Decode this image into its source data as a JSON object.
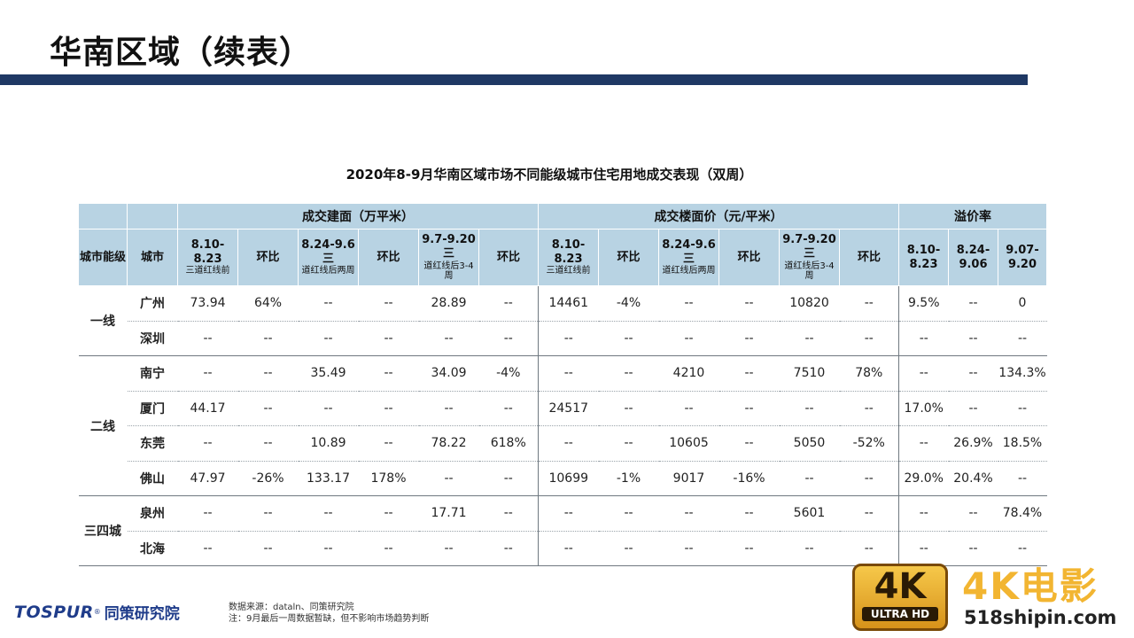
{
  "page": {
    "title": "华南区域（续表）",
    "table_title": "2020年8-9月华南区域市场不同能级城市住宅用地成交表现（双周）"
  },
  "table": {
    "group_headers": [
      "成交建面（万平米）",
      "成交楼面价（元/平米）",
      "溢价率"
    ],
    "sub_headers": {
      "tier": "城市能级",
      "city": "城市",
      "col1_main": "8.10-8.23",
      "col1_note": "三道红线前",
      "col2": "环比",
      "col3_main": "8.24-9.6三",
      "col3_note": "道红线后两周",
      "col4": "环比",
      "col5_main": "9.7-9.20三",
      "col5_note": "道红线后3-4周",
      "col6": "环比",
      "col7_main": "8.10-8.23",
      "col7_note": "三道红线前",
      "col8": "环比",
      "col9_main": "8.24-9.6三",
      "col9_note": "道红线后两周",
      "col10": "环比",
      "col11_main": "9.7-9.20三",
      "col11_note": "道红线后3-4周",
      "col12": "环比",
      "col13": "8.10-8.23",
      "col14": "8.24-9.06",
      "col15": "9.07-9.20"
    },
    "tiers": [
      "一线",
      "二线",
      "三四城"
    ],
    "rows": [
      {
        "city": "广州",
        "cells": [
          "73.94",
          "64%",
          "--",
          "--",
          "28.89",
          "--",
          "14461",
          "-4%",
          "--",
          "--",
          "10820",
          "--",
          "9.5%",
          "--",
          "0"
        ]
      },
      {
        "city": "深圳",
        "cells": [
          "--",
          "--",
          "--",
          "--",
          "--",
          "--",
          "--",
          "--",
          "--",
          "--",
          "--",
          "--",
          "--",
          "--",
          "--"
        ]
      },
      {
        "city": "南宁",
        "cells": [
          "--",
          "--",
          "35.49",
          "--",
          "34.09",
          "-4%",
          "--",
          "--",
          "4210",
          "--",
          "7510",
          "78%",
          "--",
          "--",
          "134.3%"
        ]
      },
      {
        "city": "厦门",
        "cells": [
          "44.17",
          "--",
          "--",
          "--",
          "--",
          "--",
          "24517",
          "--",
          "--",
          "--",
          "--",
          "--",
          "17.0%",
          "--",
          "--"
        ]
      },
      {
        "city": "东莞",
        "cells": [
          "--",
          "--",
          "10.89",
          "--",
          "78.22",
          "618%",
          "--",
          "--",
          "10605",
          "--",
          "5050",
          "-52%",
          "--",
          "26.9%",
          "18.5%"
        ]
      },
      {
        "city": "佛山",
        "cells": [
          "47.97",
          "-26%",
          "133.17",
          "178%",
          "--",
          "--",
          "10699",
          "-1%",
          "9017",
          "-16%",
          "--",
          "--",
          "29.0%",
          "20.4%",
          "--"
        ]
      },
      {
        "city": "泉州",
        "cells": [
          "--",
          "--",
          "--",
          "--",
          "17.71",
          "--",
          "--",
          "--",
          "--",
          "--",
          "5601",
          "--",
          "--",
          "--",
          "78.4%"
        ]
      },
      {
        "city": "北海",
        "cells": [
          "--",
          "--",
          "--",
          "--",
          "--",
          "--",
          "--",
          "--",
          "--",
          "--",
          "--",
          "--",
          "--",
          "--",
          "--"
        ]
      }
    ]
  },
  "footer": {
    "logo_brand": "TOSPUR",
    "logo_reg": "®",
    "logo_cn": "同策研究院",
    "source": "数据来源：dataln、同策研究院",
    "note": "注：9月最后一周数据暂缺，但不影响市场趋势判断"
  },
  "watermark": {
    "badge_main": "4K",
    "badge_sub": "ULTRA HD",
    "text": "4K电影",
    "url": "518shipin.com"
  },
  "colors": {
    "title_bar": "#1f3864",
    "header_fill": "#b8d3e3",
    "negative": "#4aa02c",
    "positive": "#c0161c"
  }
}
